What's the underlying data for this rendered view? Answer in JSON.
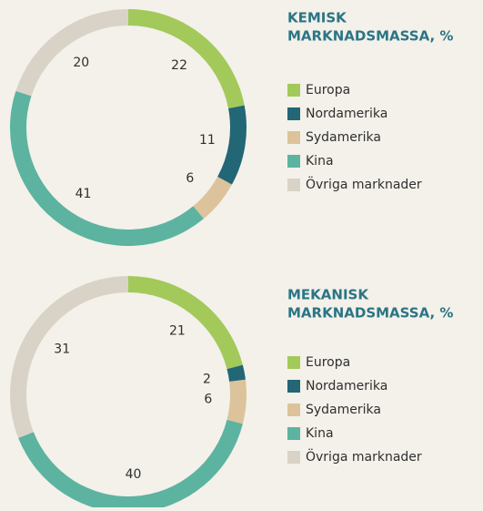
{
  "chart_data": [
    {
      "type": "donut",
      "title": [
        "KEMISK",
        "MARKNADSMASSA, %"
      ],
      "categories": [
        "Europa",
        "Nordamerika",
        "Sydamerika",
        "Kina",
        "Övriga marknader"
      ],
      "values": [
        22,
        11,
        6,
        41,
        20
      ],
      "colors": [
        "#a3c95a",
        "#236676",
        "#dcc39c",
        "#5cb3a0",
        "#d9d3c7"
      ]
    },
    {
      "type": "donut",
      "title": [
        "MEKANISK",
        "MARKNADSMASSA, %"
      ],
      "categories": [
        "Europa",
        "Nordamerika",
        "Sydamerika",
        "Kina",
        "Övriga marknader"
      ],
      "values": [
        21,
        2,
        6,
        40,
        31
      ],
      "colors": [
        "#a3c95a",
        "#236676",
        "#dcc39c",
        "#5cb3a0",
        "#d9d3c7"
      ]
    }
  ]
}
